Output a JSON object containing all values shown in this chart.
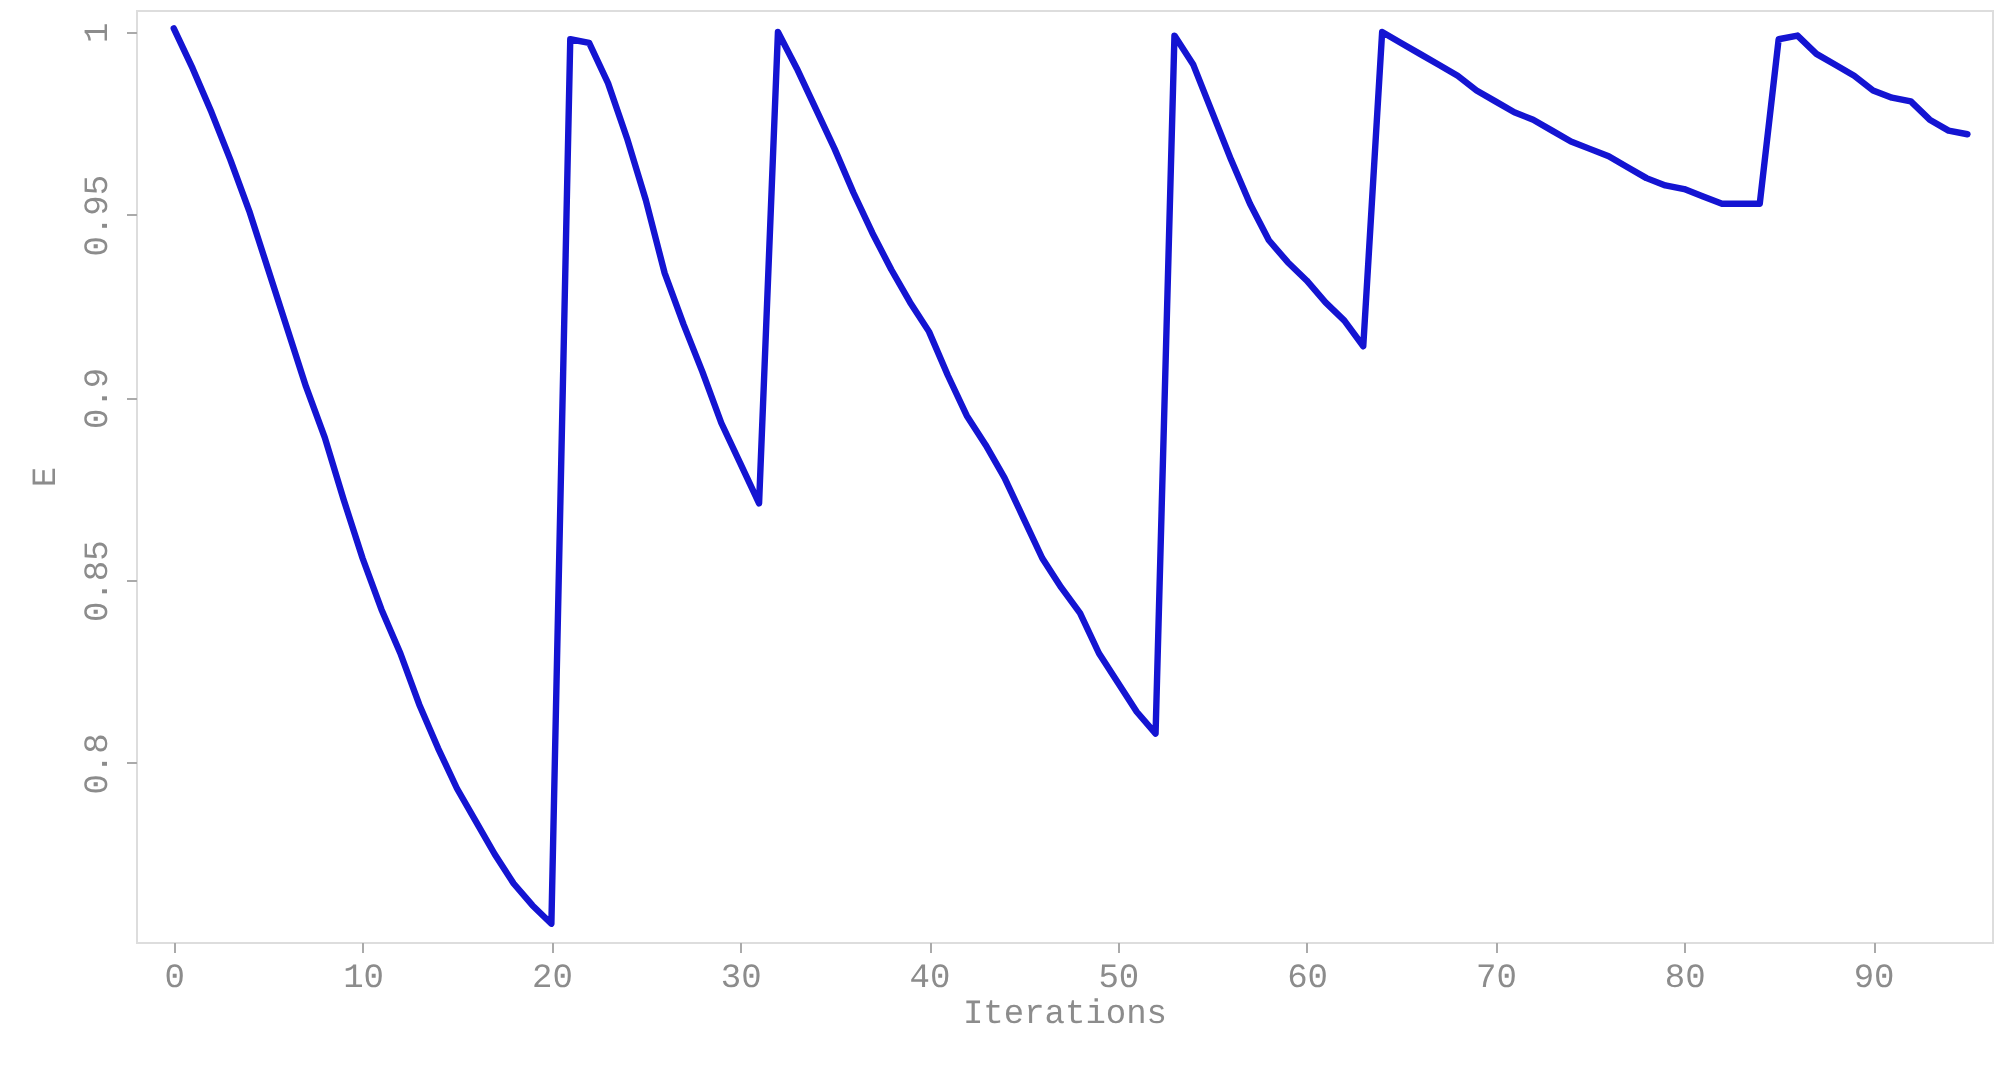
{
  "chart_data": {
    "type": "line",
    "xlabel": "Iterations",
    "ylabel": "E",
    "x": [
      0,
      1,
      2,
      3,
      4,
      5,
      6,
      7,
      8,
      9,
      10,
      11,
      12,
      13,
      14,
      15,
      16,
      17,
      18,
      19,
      20,
      21,
      22,
      23,
      24,
      25,
      26,
      27,
      28,
      29,
      30,
      31,
      32,
      33,
      34,
      35,
      36,
      37,
      38,
      39,
      40,
      41,
      42,
      43,
      44,
      45,
      46,
      47,
      48,
      49,
      50,
      51,
      52,
      53,
      54,
      55,
      56,
      57,
      58,
      59,
      60,
      61,
      62,
      63,
      64,
      65,
      66,
      67,
      68,
      69,
      70,
      71,
      72,
      73,
      74,
      75,
      76,
      77,
      78,
      79,
      80,
      81,
      82,
      83,
      84,
      85,
      86,
      87,
      88,
      89,
      90,
      91,
      92,
      93,
      94,
      95
    ],
    "series": [
      {
        "color": "#1414d2",
        "values": [
          1.001,
          0.99,
          0.978,
          0.965,
          0.951,
          0.935,
          0.919,
          0.903,
          0.889,
          0.872,
          0.856,
          0.842,
          0.83,
          0.816,
          0.804,
          0.793,
          0.784,
          0.775,
          0.767,
          0.761,
          0.756,
          0.998,
          0.997,
          0.986,
          0.971,
          0.954,
          0.934,
          0.92,
          0.907,
          0.893,
          0.882,
          0.871,
          1.0,
          0.99,
          0.979,
          0.968,
          0.956,
          0.945,
          0.935,
          0.926,
          0.918,
          0.906,
          0.895,
          0.887,
          0.878,
          0.867,
          0.856,
          0.848,
          0.841,
          0.83,
          0.822,
          0.814,
          0.808,
          0.999,
          0.991,
          0.978,
          0.965,
          0.953,
          0.943,
          0.937,
          0.932,
          0.926,
          0.921,
          0.914,
          1.0,
          0.997,
          0.994,
          0.991,
          0.988,
          0.984,
          0.981,
          0.978,
          0.976,
          0.973,
          0.97,
          0.968,
          0.966,
          0.963,
          0.96,
          0.958,
          0.957,
          0.955,
          0.953,
          0.953,
          0.953,
          0.998,
          0.999,
          0.994,
          0.991,
          0.988,
          0.984,
          0.982,
          0.981,
          0.976,
          0.973,
          0.972
        ]
      }
    ],
    "xlim": [
      -2,
      96.3
    ],
    "ylim": [
      0.751,
      1.006
    ],
    "xticks": [
      0,
      10,
      20,
      30,
      40,
      50,
      60,
      70,
      80,
      90
    ],
    "yticks": [
      0.8,
      0.85,
      0.9,
      0.95,
      1
    ],
    "grid": false,
    "marker": "none",
    "line_style": "solid"
  }
}
